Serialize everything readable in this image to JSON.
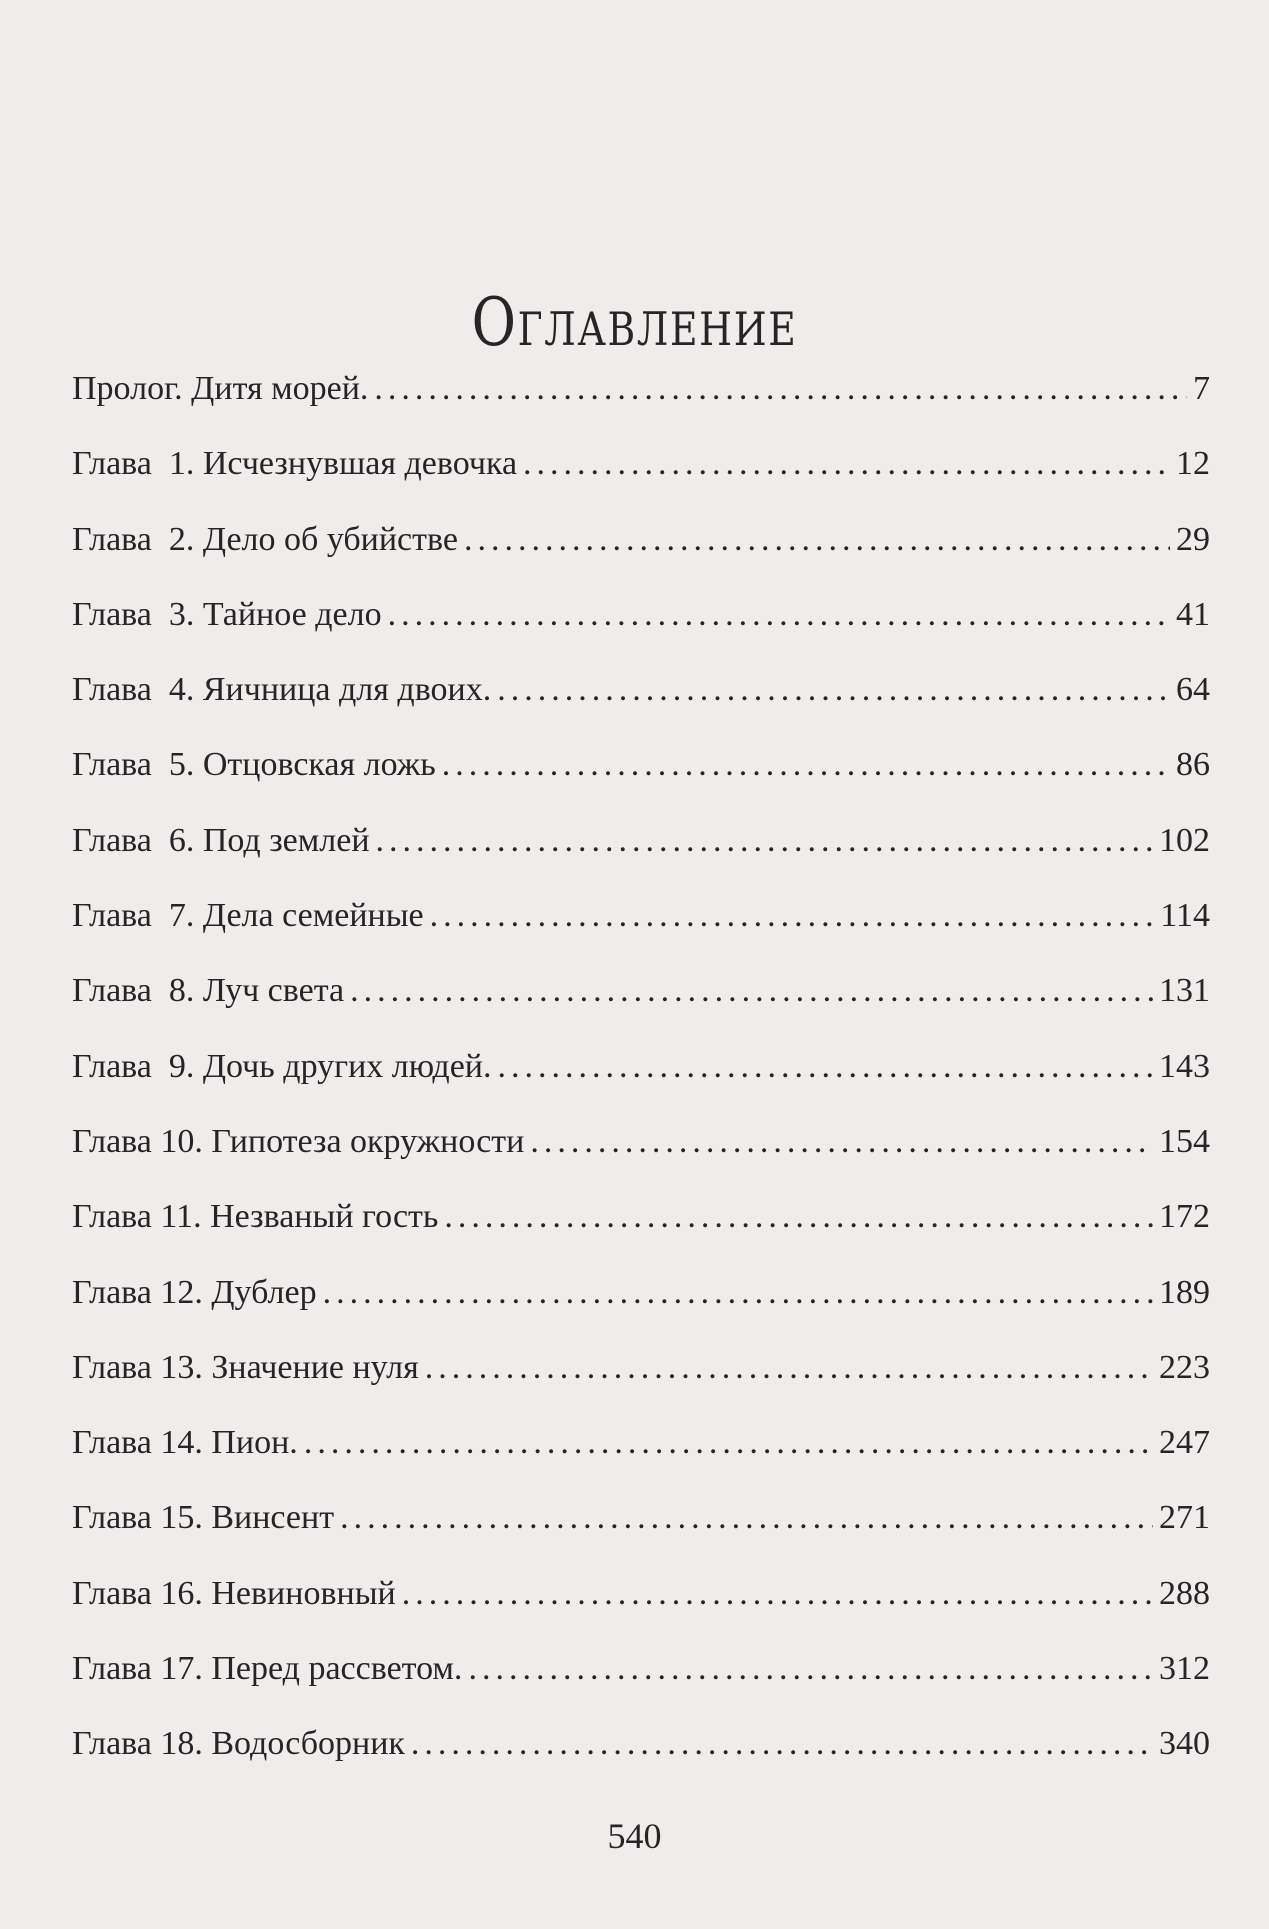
{
  "title": "Оглавление",
  "entries": [
    {
      "label": "Пролог. Дитя морей.",
      "page": "7"
    },
    {
      "label": "Глава  1. Исчезнувшая девочка",
      "page": "12"
    },
    {
      "label": "Глава  2. Дело об убийстве",
      "page": "29"
    },
    {
      "label": "Глава  3. Тайное дело",
      "page": "41"
    },
    {
      "label": "Глава  4. Яичница для двоих.",
      "page": "64"
    },
    {
      "label": "Глава  5. Отцовская ложь",
      "page": "86"
    },
    {
      "label": "Глава  6. Под землей",
      "page": "102"
    },
    {
      "label": "Глава  7. Дела семейные",
      "page": "114"
    },
    {
      "label": "Глава  8. Луч света",
      "page": "131"
    },
    {
      "label": "Глава  9. Дочь других людей.",
      "page": "143"
    },
    {
      "label": "Глава 10. Гипотеза окружности",
      "page": "154"
    },
    {
      "label": "Глава 11. Незваный гость",
      "page": "172"
    },
    {
      "label": "Глава 12. Дублер",
      "page": "189"
    },
    {
      "label": "Глава 13. Значение нуля",
      "page": "223"
    },
    {
      "label": "Глава 14. Пион.",
      "page": "247"
    },
    {
      "label": "Глава 15. Винсент",
      "page": "271"
    },
    {
      "label": "Глава 16. Невиновный",
      "page": "288"
    },
    {
      "label": "Глава 17. Перед рассветом.",
      "page": "312"
    },
    {
      "label": "Глава 18. Водосборник",
      "page": "340"
    }
  ],
  "page_number": "540"
}
